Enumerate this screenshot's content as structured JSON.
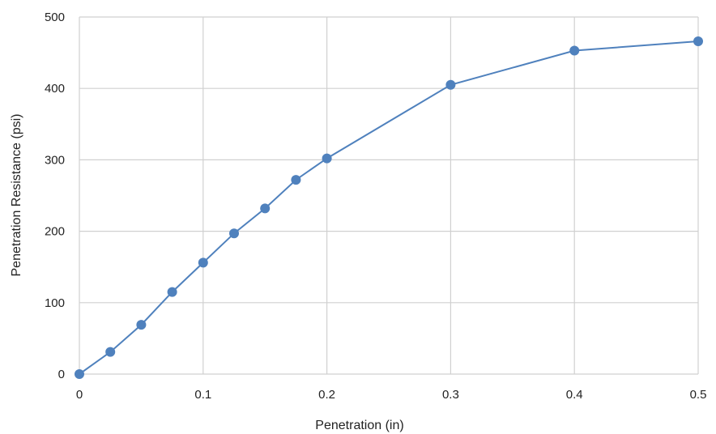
{
  "chart_data": {
    "type": "scatter",
    "title": "",
    "xlabel": "Penetration (in)",
    "ylabel": "Penetration Resistance (psi)",
    "xlim": [
      0,
      0.5
    ],
    "ylim": [
      0,
      500
    ],
    "x_ticks": [
      0,
      0.1,
      0.2,
      0.3,
      0.4,
      0.5
    ],
    "y_ticks": [
      0,
      100,
      200,
      300,
      400,
      500
    ],
    "x_tick_labels": [
      "0",
      "0.1",
      "0.2",
      "0.3",
      "0.4",
      "0.5"
    ],
    "y_tick_labels": [
      "0",
      "100",
      "200",
      "300",
      "400",
      "500"
    ],
    "grid": true,
    "legend": "none",
    "series": [
      {
        "color": "#4f81bd",
        "markers": "circle",
        "line": "straight",
        "x": [
          0,
          0.025,
          0.05,
          0.075,
          0.1,
          0.125,
          0.15,
          0.175,
          0.2,
          0.3,
          0.4,
          0.5
        ],
        "y": [
          0,
          31,
          69,
          115,
          156,
          197,
          232,
          272,
          302,
          405,
          453,
          466
        ]
      }
    ]
  }
}
